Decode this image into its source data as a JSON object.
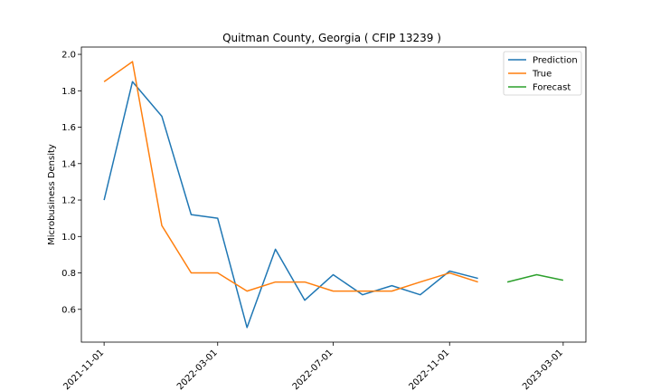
{
  "chart_data": {
    "type": "line",
    "title": "Quitman County, Georgia ( CFIP 13239 )",
    "xlabel": "",
    "ylabel": "Microbusiness Density",
    "ylim": [
      0.42,
      2.04
    ],
    "xlim": [
      "2021-10-08",
      "2023-03-25"
    ],
    "grid": false,
    "legend_position": "top-right",
    "x_ticks": [
      "2021-11-01",
      "2022-03-01",
      "2022-07-01",
      "2022-11-01",
      "2023-03-01"
    ],
    "y_ticks": [
      0.6,
      0.8,
      1.0,
      1.2,
      1.4,
      1.6,
      1.8,
      2.0
    ],
    "series": [
      {
        "name": "Prediction",
        "color": "#1f77b4",
        "x": [
          "2021-11-01",
          "2021-12-01",
          "2022-01-01",
          "2022-02-01",
          "2022-03-01",
          "2022-04-01",
          "2022-05-01",
          "2022-06-01",
          "2022-07-01",
          "2022-08-01",
          "2022-09-01",
          "2022-10-01",
          "2022-11-01",
          "2022-12-01"
        ],
        "values": [
          1.2,
          1.85,
          1.66,
          1.12,
          1.1,
          0.5,
          0.93,
          0.65,
          0.79,
          0.68,
          0.73,
          0.68,
          0.81,
          0.77
        ]
      },
      {
        "name": "True",
        "color": "#ff7f0e",
        "x": [
          "2021-11-01",
          "2021-12-01",
          "2022-01-01",
          "2022-02-01",
          "2022-03-01",
          "2022-04-01",
          "2022-05-01",
          "2022-06-01",
          "2022-07-01",
          "2022-08-01",
          "2022-09-01",
          "2022-10-01",
          "2022-11-01",
          "2022-12-01"
        ],
        "values": [
          1.85,
          1.96,
          1.06,
          0.8,
          0.8,
          0.7,
          0.75,
          0.75,
          0.7,
          0.7,
          0.7,
          0.75,
          0.8,
          0.75
        ]
      },
      {
        "name": "Forecast",
        "color": "#2ca02c",
        "x": [
          "2023-01-01",
          "2023-02-01",
          "2023-03-01"
        ],
        "values": [
          0.75,
          0.79,
          0.76
        ]
      }
    ]
  }
}
